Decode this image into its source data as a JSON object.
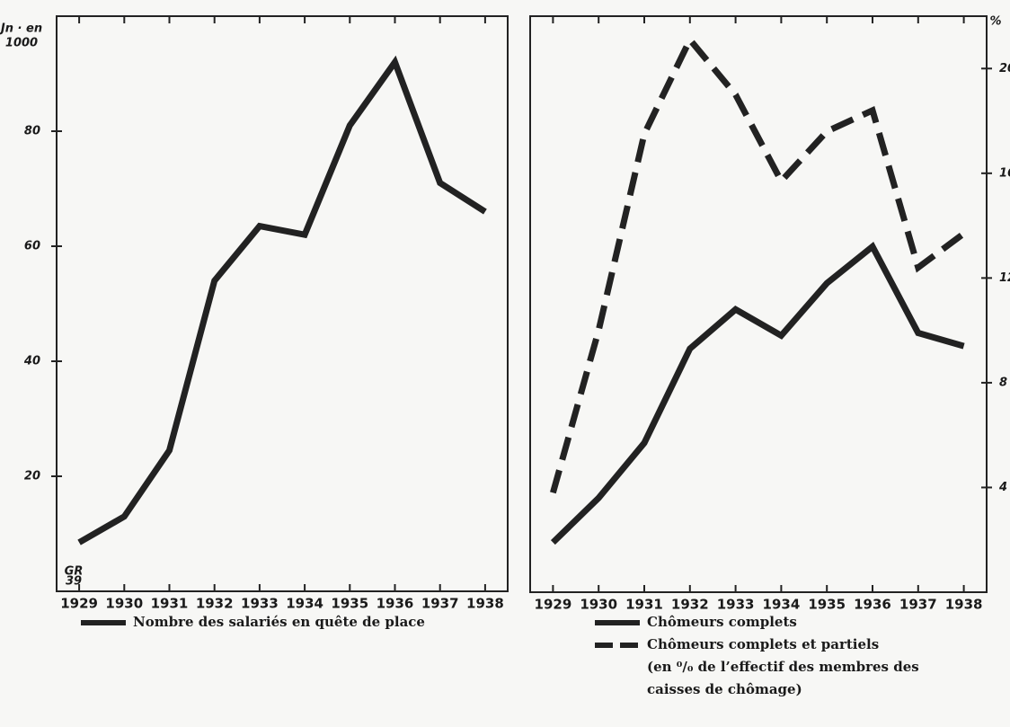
{
  "chart_data": [
    {
      "type": "line",
      "ylabel": [
        "Jn · en",
        "1000"
      ],
      "annotation": [
        "GR",
        "39"
      ],
      "categories": [
        "1929",
        "1930",
        "1931",
        "1932",
        "1933",
        "1934",
        "1935",
        "1936",
        "1937",
        "1938"
      ],
      "ylim": [
        0,
        100
      ],
      "yticks": [
        20,
        40,
        60,
        80
      ],
      "series": [
        {
          "name": "Nombre des salariés en quête de place",
          "color": "#222222",
          "line_style": "solid",
          "values": [
            8.5,
            13,
            24.5,
            54,
            63.5,
            62,
            81,
            92,
            71,
            66
          ]
        }
      ]
    },
    {
      "type": "line",
      "y2label": "%",
      "categories": [
        "1929",
        "1930",
        "1931",
        "1932",
        "1933",
        "1934",
        "1935",
        "1936",
        "1937",
        "1938"
      ],
      "y2lim": [
        0,
        22
      ],
      "y2ticks": [
        4,
        8,
        12,
        16,
        20
      ],
      "series": [
        {
          "name": "Chômeurs complets",
          "color": "#222222",
          "line_style": "solid",
          "axis": "y2",
          "values": [
            1.9,
            3.6,
            5.7,
            9.3,
            10.8,
            9.8,
            11.8,
            13.2,
            9.9,
            9.4
          ]
        },
        {
          "name": "Chômeurs complets et partiels",
          "color": "#222222",
          "line_style": "dashed",
          "axis": "y2",
          "values": [
            3.8,
            10,
            17.5,
            21.1,
            19,
            15.7,
            17.6,
            18.4,
            12.4,
            13.7
          ]
        }
      ],
      "legend_note": [
        "(en ⁰/₀ de l’effectif des membres des",
        "caisses de chômage)"
      ]
    }
  ]
}
